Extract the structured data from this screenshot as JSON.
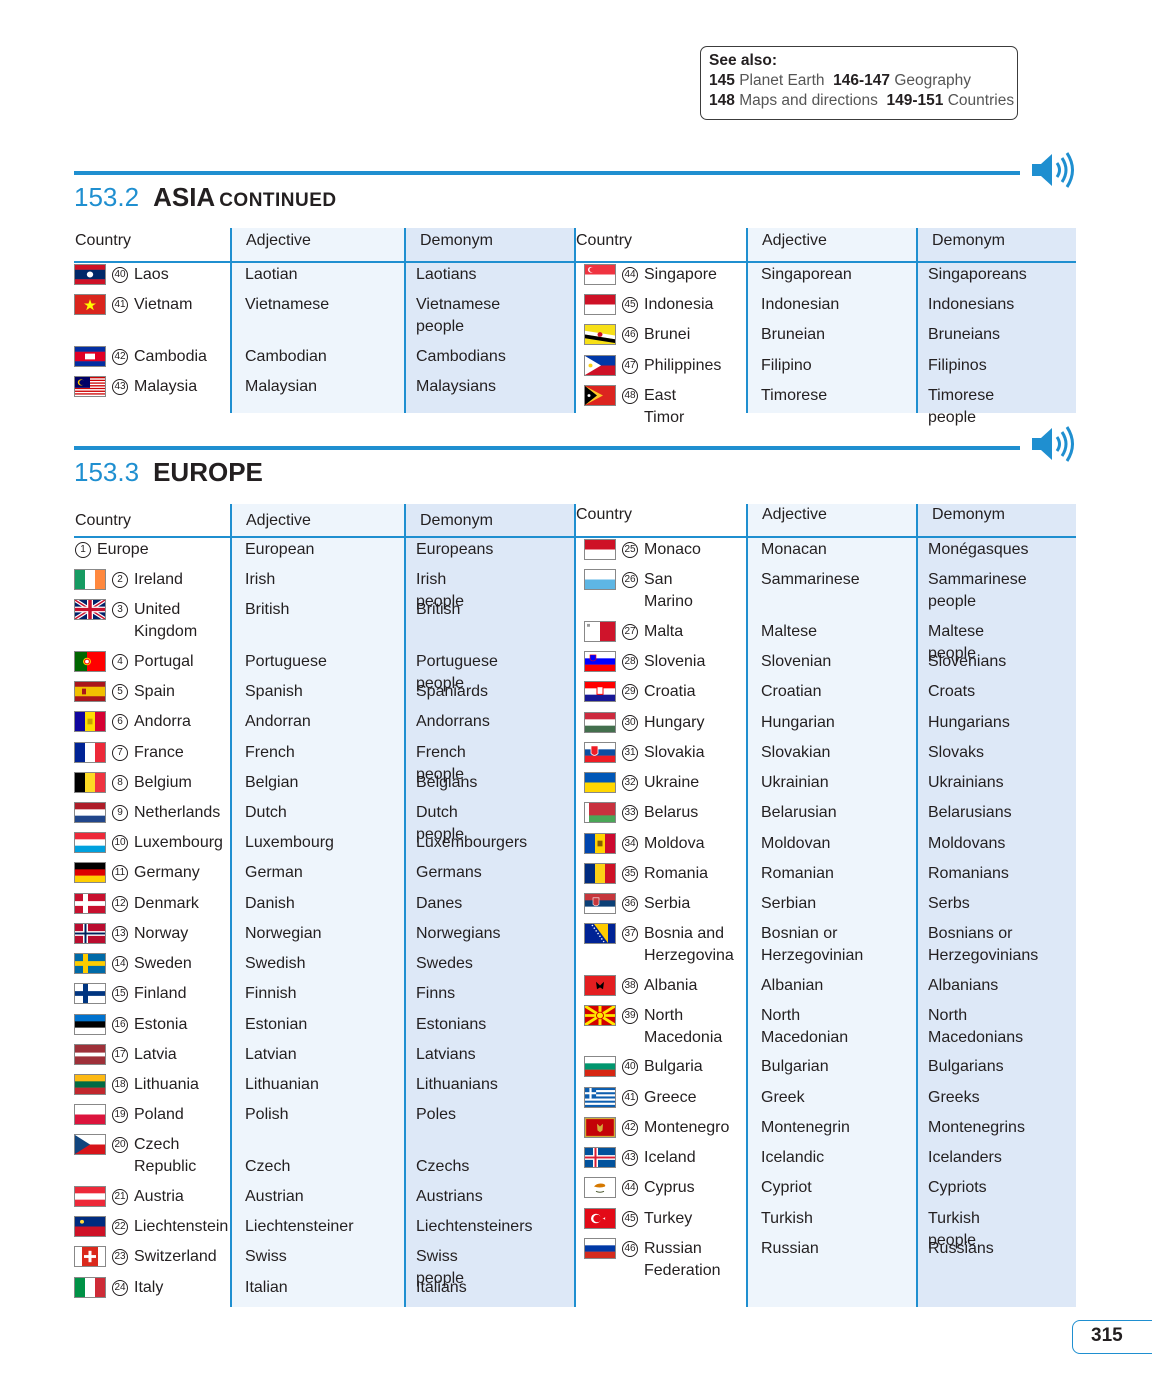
{
  "see_also": {
    "title": "See also:",
    "line1": [
      {
        "num": "145",
        "label": "Planet Earth"
      },
      {
        "num": "146-147",
        "label": "Geography"
      }
    ],
    "line2": [
      {
        "num": "148",
        "label": "Maps and directions"
      },
      {
        "num": "149-151",
        "label": "Countries"
      }
    ]
  },
  "columns": {
    "country": "Country",
    "adjective": "Adjective",
    "demonym": "Demonym"
  },
  "sections": [
    {
      "number": "153.2",
      "title": "ASIA",
      "suffix": "CONTINUED",
      "left": [
        {
          "n": "40",
          "country": "Laos",
          "adjective": "Laotian",
          "demonym": "Laotians",
          "flag": "laos"
        },
        {
          "n": "41",
          "country": "Vietnam",
          "adjective": "Vietnamese",
          "demonym": "Vietnamese people",
          "flag": "vietnam"
        },
        {
          "n": "42",
          "country": "Cambodia",
          "adjective": "Cambodian",
          "demonym": "Cambodians",
          "flag": "cambodia"
        },
        {
          "n": "43",
          "country": "Malaysia",
          "adjective": "Malaysian",
          "demonym": "Malaysians",
          "flag": "malaysia"
        }
      ],
      "right": [
        {
          "n": "44",
          "country": "Singapore",
          "adjective": "Singaporean",
          "demonym": "Singaporeans",
          "flag": "singapore"
        },
        {
          "n": "45",
          "country": "Indonesia",
          "adjective": "Indonesian",
          "demonym": "Indonesians",
          "flag": "indonesia"
        },
        {
          "n": "46",
          "country": "Brunei",
          "adjective": "Bruneian",
          "demonym": "Bruneians",
          "flag": "brunei"
        },
        {
          "n": "47",
          "country": "Philippines",
          "adjective": "Filipino",
          "demonym": "Filipinos",
          "flag": "philippines"
        },
        {
          "n": "48",
          "country": "East Timor",
          "adjective": "Timorese",
          "demonym": "Timorese people",
          "flag": "easttimor"
        }
      ]
    },
    {
      "number": "153.3",
      "title": "EUROPE",
      "suffix": "",
      "left": [
        {
          "n": "1",
          "country": "Europe",
          "adjective": "European",
          "demonym": "Europeans",
          "flag": ""
        },
        {
          "n": "2",
          "country": "Ireland",
          "adjective": "Irish",
          "demonym": "Irish people",
          "flag": "ireland"
        },
        {
          "n": "3",
          "country": "United Kingdom",
          "adjective": "British",
          "demonym": "British",
          "flag": "uk"
        },
        {
          "n": "4",
          "country": "Portugal",
          "adjective": "Portuguese",
          "demonym": "Portuguese people",
          "flag": "portugal"
        },
        {
          "n": "5",
          "country": "Spain",
          "adjective": "Spanish",
          "demonym": "Spaniards",
          "flag": "spain"
        },
        {
          "n": "6",
          "country": "Andorra",
          "adjective": "Andorran",
          "demonym": "Andorrans",
          "flag": "andorra"
        },
        {
          "n": "7",
          "country": "France",
          "adjective": "French",
          "demonym": "French people",
          "flag": "france"
        },
        {
          "n": "8",
          "country": "Belgium",
          "adjective": "Belgian",
          "demonym": "Belgians",
          "flag": "belgium"
        },
        {
          "n": "9",
          "country": "Netherlands",
          "adjective": "Dutch",
          "demonym": "Dutch people",
          "flag": "netherlands"
        },
        {
          "n": "10",
          "country": "Luxembourg",
          "adjective": "Luxembourg",
          "demonym": "Luxembourgers",
          "flag": "luxembourg"
        },
        {
          "n": "11",
          "country": "Germany",
          "adjective": "German",
          "demonym": "Germans",
          "flag": "germany"
        },
        {
          "n": "12",
          "country": "Denmark",
          "adjective": "Danish",
          "demonym": "Danes",
          "flag": "denmark"
        },
        {
          "n": "13",
          "country": "Norway",
          "adjective": "Norwegian",
          "demonym": "Norwegians",
          "flag": "norway"
        },
        {
          "n": "14",
          "country": "Sweden",
          "adjective": "Swedish",
          "demonym": "Swedes",
          "flag": "sweden"
        },
        {
          "n": "15",
          "country": "Finland",
          "adjective": "Finnish",
          "demonym": "Finns",
          "flag": "finland"
        },
        {
          "n": "16",
          "country": "Estonia",
          "adjective": "Estonian",
          "demonym": "Estonians",
          "flag": "estonia"
        },
        {
          "n": "17",
          "country": "Latvia",
          "adjective": "Latvian",
          "demonym": "Latvians",
          "flag": "latvia"
        },
        {
          "n": "18",
          "country": "Lithuania",
          "adjective": "Lithuanian",
          "demonym": "Lithuanians",
          "flag": "lithuania"
        },
        {
          "n": "19",
          "country": "Poland",
          "adjective": "Polish",
          "demonym": "Poles",
          "flag": "poland"
        },
        {
          "n": "20",
          "country": "Czech Republic",
          "adjective": "Czech",
          "demonym": "Czechs",
          "flag": "czech"
        },
        {
          "n": "21",
          "country": "Austria",
          "adjective": "Austrian",
          "demonym": "Austrians",
          "flag": "austria"
        },
        {
          "n": "22",
          "country": "Liechtenstein",
          "adjective": "Liechtensteiner",
          "demonym": "Liechtensteiners",
          "flag": "liechtenstein"
        },
        {
          "n": "23",
          "country": "Switzerland",
          "adjective": "Swiss",
          "demonym": "Swiss people",
          "flag": "switzerland"
        },
        {
          "n": "24",
          "country": "Italy",
          "adjective": "Italian",
          "demonym": "Italians",
          "flag": "italy"
        }
      ],
      "right": [
        {
          "n": "25",
          "country": "Monaco",
          "adjective": "Monacan",
          "demonym": "Monégasques",
          "flag": "monaco"
        },
        {
          "n": "26",
          "country": "San Marino",
          "adjective": "Sammarinese",
          "demonym": "Sammarinese people",
          "flag": "sanmarino"
        },
        {
          "n": "27",
          "country": "Malta",
          "adjective": "Maltese",
          "demonym": "Maltese people",
          "flag": "malta"
        },
        {
          "n": "28",
          "country": "Slovenia",
          "adjective": "Slovenian",
          "demonym": "Slovenians",
          "flag": "slovenia"
        },
        {
          "n": "29",
          "country": "Croatia",
          "adjective": "Croatian",
          "demonym": "Croats",
          "flag": "croatia"
        },
        {
          "n": "30",
          "country": "Hungary",
          "adjective": "Hungarian",
          "demonym": "Hungarians",
          "flag": "hungary"
        },
        {
          "n": "31",
          "country": "Slovakia",
          "adjective": "Slovakian",
          "demonym": "Slovaks",
          "flag": "slovakia"
        },
        {
          "n": "32",
          "country": "Ukraine",
          "adjective": "Ukrainian",
          "demonym": "Ukrainians",
          "flag": "ukraine"
        },
        {
          "n": "33",
          "country": "Belarus",
          "adjective": "Belarusian",
          "demonym": "Belarusians",
          "flag": "belarus"
        },
        {
          "n": "34",
          "country": "Moldova",
          "adjective": "Moldovan",
          "demonym": "Moldovans",
          "flag": "moldova"
        },
        {
          "n": "35",
          "country": "Romania",
          "adjective": "Romanian",
          "demonym": "Romanians",
          "flag": "romania"
        },
        {
          "n": "36",
          "country": "Serbia",
          "adjective": "Serbian",
          "demonym": "Serbs",
          "flag": "serbia"
        },
        {
          "n": "37",
          "country": "Bosnia and Herzegovina",
          "adjective": "Bosnian or Herzegovinian",
          "demonym": "Bosnians or Herzegovinians",
          "flag": "bosnia"
        },
        {
          "n": "38",
          "country": "Albania",
          "adjective": "Albanian",
          "demonym": "Albanians",
          "flag": "albania"
        },
        {
          "n": "39",
          "country": "North Macedonia",
          "adjective": "North Macedonian",
          "demonym": "North Macedonians",
          "flag": "macedonia"
        },
        {
          "n": "40",
          "country": "Bulgaria",
          "adjective": "Bulgarian",
          "demonym": "Bulgarians",
          "flag": "bulgaria"
        },
        {
          "n": "41",
          "country": "Greece",
          "adjective": "Greek",
          "demonym": "Greeks",
          "flag": "greece"
        },
        {
          "n": "42",
          "country": "Montenegro",
          "adjective": "Montenegrin",
          "demonym": "Montenegrins",
          "flag": "montenegro"
        },
        {
          "n": "43",
          "country": "Iceland",
          "adjective": "Icelandic",
          "demonym": "Icelanders",
          "flag": "iceland"
        },
        {
          "n": "44",
          "country": "Cyprus",
          "adjective": "Cypriot",
          "demonym": "Cypriots",
          "flag": "cyprus"
        },
        {
          "n": "45",
          "country": "Turkey",
          "adjective": "Turkish",
          "demonym": "Turkish people",
          "flag": "turkey"
        },
        {
          "n": "46",
          "country": "Russian Federation",
          "adjective": "Russian",
          "demonym": "Russians",
          "flag": "russia"
        }
      ]
    }
  ],
  "page_number": "315",
  "colors": {
    "accent": "#1f8fd0",
    "adjective_bg": "#eef5fc",
    "demonym_bg": "#dde8f7",
    "text": "#231f20"
  }
}
